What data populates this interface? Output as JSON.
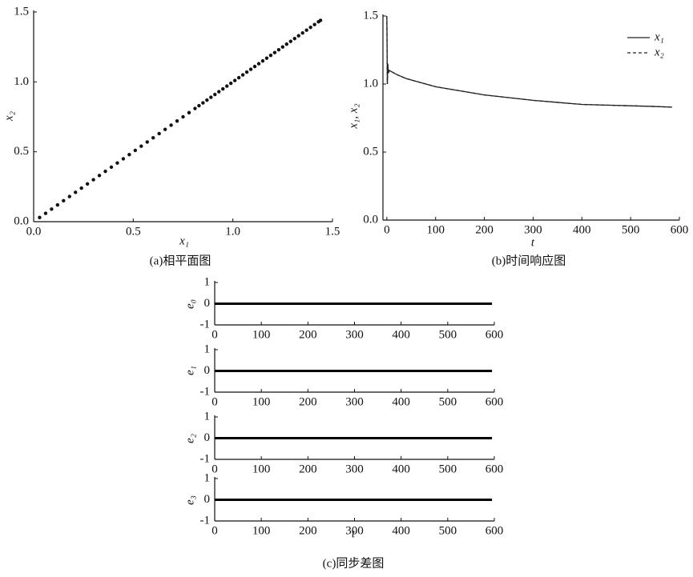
{
  "chart_data": [
    {
      "type": "scatter",
      "caption": "(a)相平面图",
      "xlabel": "x₁",
      "ylabel": "x₂",
      "color": "#111111",
      "x": [
        0.03,
        0.06,
        0.09,
        0.12,
        0.15,
        0.18,
        0.21,
        0.24,
        0.27,
        0.3,
        0.33,
        0.36,
        0.39,
        0.42,
        0.45,
        0.48,
        0.51,
        0.54,
        0.57,
        0.6,
        0.63,
        0.66,
        0.69,
        0.72,
        0.75,
        0.78,
        0.81,
        0.83,
        0.85,
        0.87,
        0.89,
        0.91,
        0.93,
        0.95,
        0.97,
        0.99,
        1.01,
        1.03,
        1.05,
        1.07,
        1.09,
        1.11,
        1.13,
        1.15,
        1.17,
        1.19,
        1.21,
        1.23,
        1.25,
        1.27,
        1.29,
        1.31,
        1.33,
        1.35,
        1.37,
        1.39,
        1.41,
        1.43,
        1.44
      ],
      "values": [
        0.03,
        0.06,
        0.09,
        0.12,
        0.15,
        0.18,
        0.21,
        0.24,
        0.27,
        0.3,
        0.33,
        0.36,
        0.39,
        0.42,
        0.45,
        0.48,
        0.51,
        0.54,
        0.57,
        0.6,
        0.63,
        0.66,
        0.69,
        0.72,
        0.75,
        0.78,
        0.81,
        0.83,
        0.85,
        0.87,
        0.89,
        0.91,
        0.93,
        0.95,
        0.97,
        0.99,
        1.01,
        1.03,
        1.05,
        1.07,
        1.09,
        1.11,
        1.13,
        1.15,
        1.17,
        1.19,
        1.21,
        1.23,
        1.25,
        1.27,
        1.29,
        1.31,
        1.33,
        1.35,
        1.37,
        1.39,
        1.41,
        1.43,
        1.44
      ],
      "xlim": [
        0,
        1.5
      ],
      "xticks": [
        {
          "value": 0,
          "label": "0.0"
        },
        0.5,
        {
          "value": 1,
          "label": "1.0"
        },
        1.5
      ],
      "ylim": [
        0,
        1.5
      ],
      "yticks": [
        {
          "value": 0,
          "label": "0.0"
        },
        0.5,
        {
          "value": 1,
          "label": "1.0"
        },
        1.5
      ]
    },
    {
      "type": "line",
      "caption": "(b)时间响应图",
      "xlabel": "t",
      "ylabel": "x₁, x₂",
      "legend": "upper right",
      "x": [
        0,
        1,
        2,
        3,
        5,
        10,
        20,
        40,
        60,
        80,
        100,
        150,
        200,
        250,
        300,
        350,
        400,
        450,
        500,
        550,
        585
      ],
      "series": [
        {
          "name": "x₁",
          "color": "#222222",
          "dash": false,
          "values": [
            1.5,
            1.0,
            1.15,
            1.08,
            1.1,
            1.09,
            1.07,
            1.04,
            1.02,
            1.0,
            0.98,
            0.95,
            0.92,
            0.9,
            0.88,
            0.865,
            0.85,
            0.845,
            0.84,
            0.835,
            0.83
          ]
        },
        {
          "name": "x₂",
          "color": "#222222",
          "dash": true,
          "values": [
            1.5,
            1.0,
            1.14,
            1.08,
            1.1,
            1.09,
            1.07,
            1.04,
            1.02,
            1.0,
            0.98,
            0.95,
            0.92,
            0.9,
            0.88,
            0.865,
            0.85,
            0.845,
            0.84,
            0.835,
            0.83
          ]
        }
      ],
      "xlim": [
        -8,
        600
      ],
      "xticks": [
        0,
        100,
        200,
        300,
        400,
        500,
        600
      ],
      "ylim": [
        0,
        1.5
      ],
      "yticks": [
        {
          "value": 0,
          "label": "0.0"
        },
        0.5,
        {
          "value": 1,
          "label": "1.0"
        },
        1.5
      ]
    },
    {
      "type": "line",
      "ylabel": "e₀",
      "x": [
        0,
        595
      ],
      "series": [
        {
          "color": "#000000",
          "values": [
            0,
            0
          ]
        }
      ],
      "xlim": [
        0,
        600
      ],
      "xticks": [
        0,
        100,
        200,
        300,
        400,
        500,
        600
      ],
      "ylim": [
        -1,
        1
      ],
      "yticks": [
        -1,
        0,
        1
      ]
    },
    {
      "type": "line",
      "ylabel": "e₁",
      "x": [
        0,
        595
      ],
      "series": [
        {
          "color": "#000000",
          "values": [
            0,
            0
          ]
        }
      ],
      "xlim": [
        0,
        600
      ],
      "xticks": [
        0,
        100,
        200,
        300,
        400,
        500,
        600
      ],
      "ylim": [
        -1,
        1
      ],
      "yticks": [
        -1,
        0,
        1
      ]
    },
    {
      "type": "line",
      "ylabel": "e₂",
      "x": [
        0,
        595
      ],
      "series": [
        {
          "color": "#000000",
          "values": [
            0,
            0
          ]
        }
      ],
      "xlim": [
        0,
        600
      ],
      "xticks": [
        0,
        100,
        200,
        300,
        400,
        500,
        600
      ],
      "ylim": [
        -1,
        1
      ],
      "yticks": [
        -1,
        0,
        1
      ]
    },
    {
      "type": "line",
      "ylabel": "e₃",
      "xlabel": "t",
      "caption": "(c)同步差图",
      "x": [
        0,
        595
      ],
      "series": [
        {
          "color": "#000000",
          "values": [
            0,
            0
          ]
        }
      ],
      "xlim": [
        0,
        600
      ],
      "xticks": [
        0,
        100,
        200,
        300,
        400,
        500,
        600
      ],
      "ylim": [
        -1,
        1
      ],
      "yticks": [
        -1,
        0,
        1
      ]
    }
  ]
}
